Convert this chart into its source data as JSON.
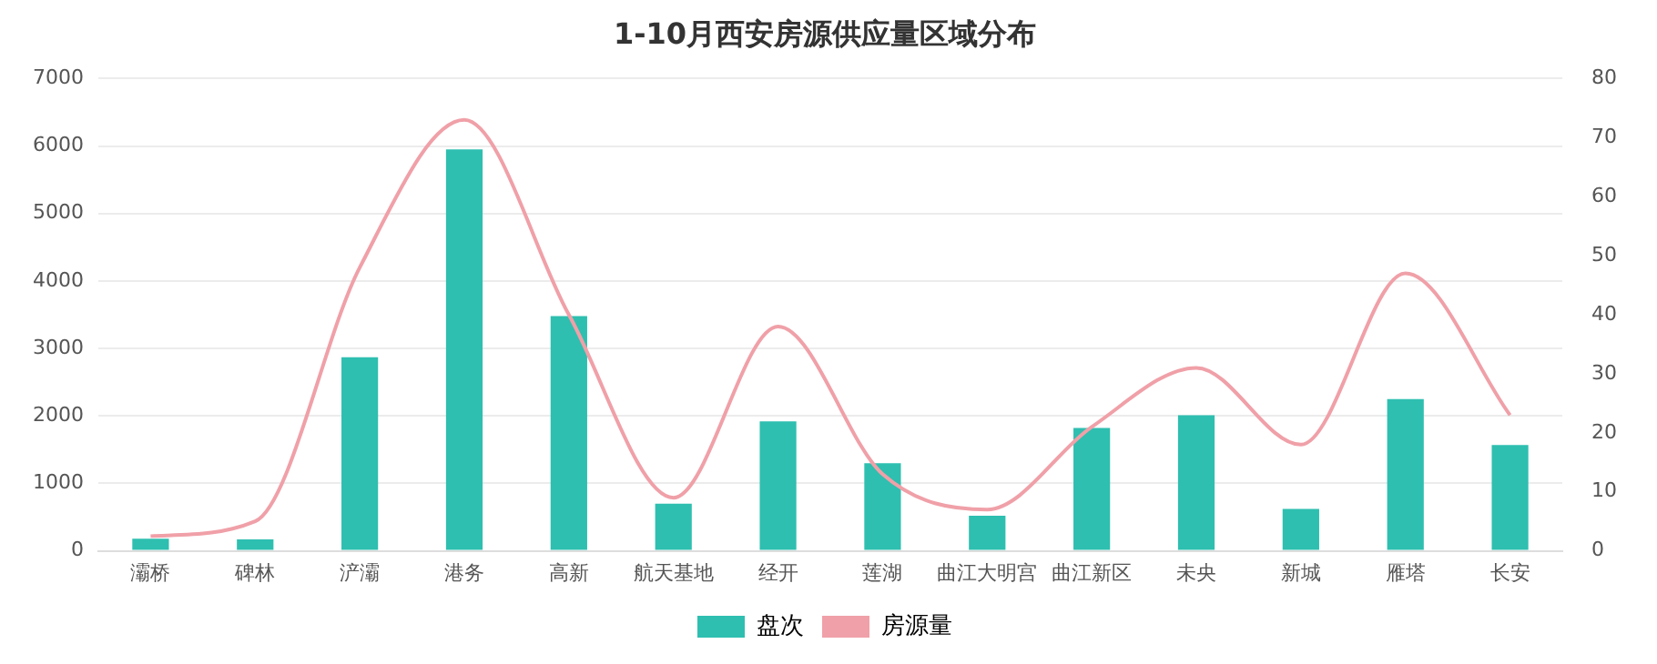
{
  "chart_data": {
    "type": "bar",
    "title": "1-10月西安房源供应量区域分布",
    "categories": [
      "灞桥",
      "碑林",
      "浐灞",
      "港务",
      "高新",
      "航天基地",
      "经开",
      "莲湖",
      "曲江大明宫",
      "曲江新区",
      "未央",
      "新城",
      "雁塔",
      "长安"
    ],
    "series": [
      {
        "name": "盘次",
        "color": "#2ebfb0",
        "values": [
          180,
          170,
          2870,
          5950,
          3480,
          700,
          1920,
          1300,
          520,
          1820,
          2010,
          620,
          2250,
          1570
        ]
      },
      {
        "name": "房源量",
        "type": "line",
        "axis": "y2",
        "color": "#f0a0a8",
        "values": [
          2.5,
          5,
          48,
          73,
          40,
          9,
          38,
          13,
          7,
          21,
          31,
          18,
          47,
          23
        ]
      }
    ],
    "ylim": [
      0,
      7000
    ],
    "yticks": [
      0,
      1000,
      2000,
      3000,
      4000,
      5000,
      6000,
      7000
    ],
    "y2lim": [
      0,
      80
    ],
    "y2ticks": [
      0,
      10,
      20,
      30,
      40,
      50,
      60,
      70,
      80
    ],
    "grid": "y",
    "legend": "bottom",
    "marker": "none"
  }
}
